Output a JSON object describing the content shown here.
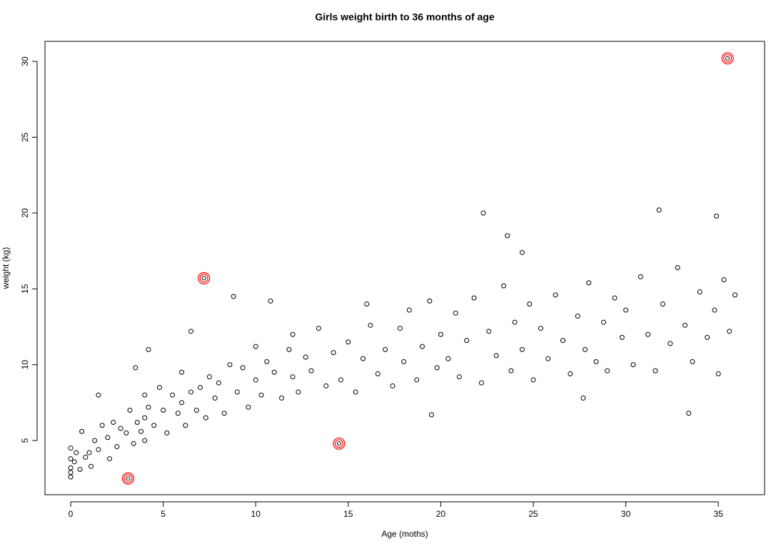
{
  "chart_data": {
    "type": "scatter",
    "title": "Girls weight birth to 36 months of age",
    "x_label": "Age (moths)",
    "y_label": "weight (kg)",
    "xlim": [
      -1.39,
      37.5
    ],
    "ylim": [
      1.43,
      31.32
    ],
    "xticks": [
      0,
      5,
      10,
      15,
      20,
      25,
      30,
      35
    ],
    "yticks": [
      5,
      10,
      15,
      20,
      25,
      30
    ],
    "series": [
      {
        "color": "#000000",
        "marker": "open-circle",
        "x": [
          0,
          0,
          0,
          0,
          0,
          0.2,
          0.3,
          0.5,
          0.6,
          0.8,
          1,
          1.1,
          1.3,
          1.5,
          1.7,
          2,
          2.1,
          2.3,
          2.5,
          2.7,
          3,
          3.2,
          3.4,
          3.6,
          3.8,
          4,
          4,
          4,
          4.2,
          4.5,
          4.8,
          5,
          5.2,
          5.5,
          5.8,
          6,
          6,
          6.2,
          6.5,
          6.8,
          7,
          7.3,
          7.5,
          7.8,
          8,
          8.3,
          8.6,
          9,
          9.3,
          9.6,
          10,
          10,
          10.3,
          10.6,
          11,
          11.4,
          11.8,
          12,
          12,
          12.3,
          12.7,
          13,
          13.4,
          13.8,
          14.2,
          14.6,
          15,
          15.4,
          15.8,
          16.2,
          16.6,
          17,
          17.4,
          17.8,
          18,
          18.3,
          18.7,
          19,
          19.4,
          19.8,
          20,
          20.4,
          20.8,
          21,
          21.4,
          21.8,
          22.2,
          22.6,
          23,
          23.4,
          23.8,
          24,
          24.4,
          24.8,
          25,
          25.4,
          25.8,
          26.2,
          26.6,
          27,
          27.4,
          27.8,
          28,
          28.4,
          28.8,
          29,
          29.4,
          29.8,
          30,
          30.4,
          30.8,
          31.2,
          31.6,
          32,
          32.4,
          32.8,
          33.2,
          33.6,
          34,
          34.4,
          34.8,
          35,
          35.3,
          35.6,
          35.9,
          1.5,
          3.5,
          4.2,
          6.5,
          8.8,
          10.8,
          22.3,
          24.4,
          31.8,
          34.9,
          33.4,
          27.7,
          23.6,
          16,
          19.5
        ],
        "values": [
          3.2,
          4.5,
          2.6,
          3.8,
          2.9,
          3.6,
          4.2,
          3.1,
          5.6,
          3.9,
          4.2,
          3.3,
          5.0,
          4.4,
          6.0,
          5.2,
          3.8,
          6.2,
          4.6,
          5.8,
          5.5,
          7.0,
          4.8,
          6.2,
          5.6,
          6.5,
          8.0,
          5.0,
          7.2,
          6.0,
          8.5,
          7.0,
          5.5,
          8.0,
          6.8,
          7.5,
          9.5,
          6.0,
          8.2,
          7.0,
          8.5,
          6.5,
          9.2,
          7.8,
          8.8,
          6.8,
          10.0,
          8.2,
          9.8,
          7.2,
          9.0,
          11.2,
          8.0,
          10.2,
          9.5,
          7.8,
          11.0,
          9.2,
          12.0,
          8.2,
          10.5,
          9.6,
          12.4,
          8.6,
          10.8,
          9.0,
          11.5,
          8.2,
          10.4,
          12.6,
          9.4,
          11.0,
          8.6,
          12.4,
          10.2,
          13.6,
          9.0,
          11.2,
          14.2,
          9.8,
          12.0,
          10.4,
          13.4,
          9.2,
          11.6,
          14.4,
          8.8,
          12.2,
          10.6,
          15.2,
          9.6,
          12.8,
          11.0,
          14.0,
          9.0,
          12.4,
          10.4,
          14.6,
          11.6,
          9.4,
          13.2,
          11.0,
          15.4,
          10.2,
          12.8,
          9.6,
          14.4,
          11.8,
          13.6,
          10.0,
          15.8,
          12.0,
          9.6,
          14.0,
          11.4,
          16.4,
          12.6,
          10.2,
          14.8,
          11.8,
          13.6,
          9.4,
          15.6,
          12.2,
          14.6,
          8.0,
          9.8,
          11.0,
          12.2,
          14.5,
          14.2,
          20.0,
          17.4,
          20.2,
          19.8,
          6.8,
          7.8,
          18.5,
          14.0,
          6.7
        ]
      },
      {
        "color": "#ff0000",
        "marker": "ringed-circle",
        "x": [
          3.1,
          7.2,
          14.5,
          35.5
        ],
        "values": [
          2.5,
          15.7,
          4.8,
          30.2
        ]
      }
    ]
  }
}
